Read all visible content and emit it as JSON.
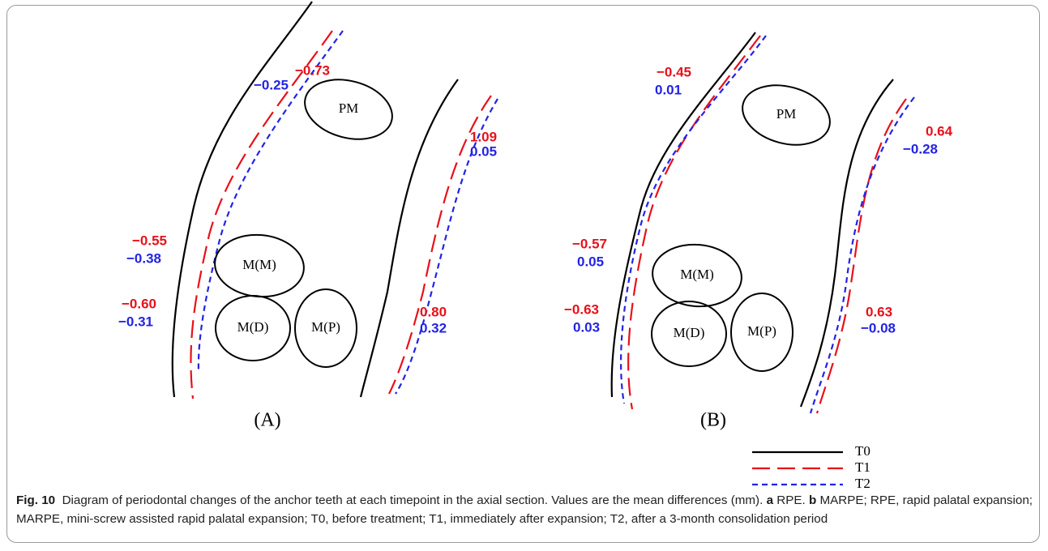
{
  "panels": [
    {
      "label": "(A)",
      "teeth": [
        "PM",
        "M(M)",
        "M(D)",
        "M(P)"
      ],
      "values": [
        "−0.73",
        "−0.25",
        "1.09",
        "0.05",
        "−0.55",
        "−0.38",
        "−0.60",
        "−0.31",
        "0.80",
        "0.32"
      ]
    },
    {
      "label": "(B)",
      "teeth": [
        "PM",
        "M(M)",
        "M(D)",
        "M(P)"
      ],
      "values": [
        "−0.45",
        "0.01",
        "0.64",
        "−0.28",
        "−0.57",
        "0.05",
        "−0.63",
        "0.03",
        "0.63",
        "−0.08"
      ]
    }
  ],
  "legend": [
    "T0",
    "T1",
    "T2"
  ],
  "caption": {
    "label": "Fig. 10",
    "text_1": "Diagram of periodontal changes of the anchor teeth at each timepoint in the axial section. Values are the mean differences (mm).",
    "a": "a",
    "text_2": "RPE.",
    "b": "b",
    "text_3": "MARPE; RPE, rapid palatal expansion; MARPE, mini-screw assisted rapid palatal expansion; T0, before treatment; T1, immediately after expansion; T2, after a 3-month consolidation period"
  }
}
